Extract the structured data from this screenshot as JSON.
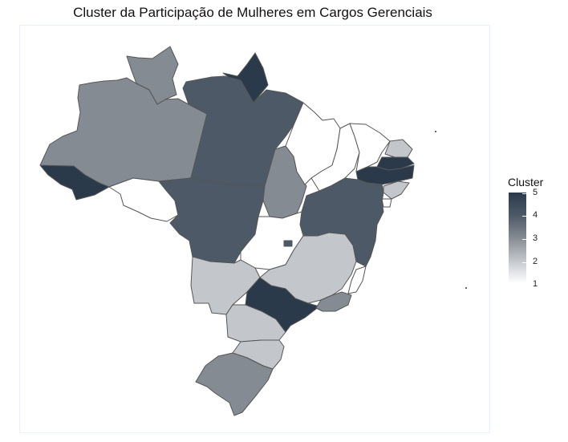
{
  "title": "Cluster da Participação de Mulheres em Cargos Gerenciais",
  "legend": {
    "title": "Cluster",
    "ticks": [
      "5",
      "4",
      "3",
      "2",
      "1"
    ]
  },
  "colors": {
    "cluster_1": "#ffffff",
    "cluster_2": "#c3c7cc",
    "cluster_3": "#858b92",
    "cluster_4": "#4d5966",
    "cluster_5": "#2b3a4b"
  },
  "states": [
    {
      "id": "AC",
      "cluster": 5
    },
    {
      "id": "AM",
      "cluster": 3
    },
    {
      "id": "RR",
      "cluster": 3
    },
    {
      "id": "AP",
      "cluster": 5
    },
    {
      "id": "PA",
      "cluster": 4
    },
    {
      "id": "RO",
      "cluster": 1
    },
    {
      "id": "MT",
      "cluster": 4
    },
    {
      "id": "TO",
      "cluster": 3
    },
    {
      "id": "MA",
      "cluster": 1
    },
    {
      "id": "PI",
      "cluster": 1
    },
    {
      "id": "CE",
      "cluster": 1
    },
    {
      "id": "RN",
      "cluster": 2
    },
    {
      "id": "PB",
      "cluster": 5
    },
    {
      "id": "PE",
      "cluster": 5
    },
    {
      "id": "AL",
      "cluster": 2
    },
    {
      "id": "SE",
      "cluster": 1
    },
    {
      "id": "BA",
      "cluster": 4
    },
    {
      "id": "GO",
      "cluster": 1
    },
    {
      "id": "DF",
      "cluster": 4
    },
    {
      "id": "MG",
      "cluster": 2
    },
    {
      "id": "ES",
      "cluster": 1
    },
    {
      "id": "MS",
      "cluster": 2
    },
    {
      "id": "SP",
      "cluster": 5
    },
    {
      "id": "RJ",
      "cluster": 3
    },
    {
      "id": "PR",
      "cluster": 2
    },
    {
      "id": "SC",
      "cluster": 2
    },
    {
      "id": "RS",
      "cluster": 3
    }
  ]
}
